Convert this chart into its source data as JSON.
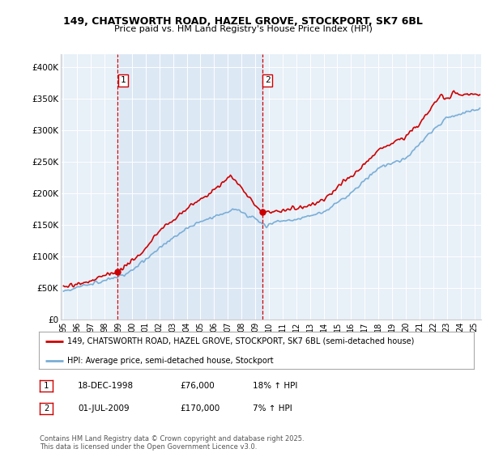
{
  "title_line1": "149, CHATSWORTH ROAD, HAZEL GROVE, STOCKPORT, SK7 6BL",
  "title_line2": "Price paid vs. HM Land Registry's House Price Index (HPI)",
  "ylim": [
    0,
    420000
  ],
  "yticks": [
    0,
    50000,
    100000,
    150000,
    200000,
    250000,
    300000,
    350000,
    400000
  ],
  "ytick_labels": [
    "£0",
    "£50K",
    "£100K",
    "£150K",
    "£200K",
    "£250K",
    "£300K",
    "£350K",
    "£400K"
  ],
  "sale1_date_num": 1998.96,
  "sale1_price": 76000,
  "sale1_label": "1",
  "sale1_date_str": "18-DEC-1998",
  "sale1_pct": "18% ↑ HPI",
  "sale2_date_num": 2009.5,
  "sale2_price": 170000,
  "sale2_label": "2",
  "sale2_date_str": "01-JUL-2009",
  "sale2_pct": "7% ↑ HPI",
  "line1_label": "149, CHATSWORTH ROAD, HAZEL GROVE, STOCKPORT, SK7 6BL (semi-detached house)",
  "line2_label": "HPI: Average price, semi-detached house, Stockport",
  "line1_color": "#cc0000",
  "line2_color": "#7aaed6",
  "vline_color": "#cc0000",
  "shade_color": "#dde8f5",
  "plot_bg": "#e8f0f8",
  "footer": "Contains HM Land Registry data © Crown copyright and database right 2025.\nThis data is licensed under the Open Government Licence v3.0.",
  "xlim_start": 1994.8,
  "xlim_end": 2025.5,
  "xticks": [
    1995,
    1996,
    1997,
    1998,
    1999,
    2000,
    2001,
    2002,
    2003,
    2004,
    2005,
    2006,
    2007,
    2008,
    2009,
    2010,
    2011,
    2012,
    2013,
    2014,
    2015,
    2016,
    2017,
    2018,
    2019,
    2020,
    2021,
    2022,
    2023,
    2024,
    2025
  ]
}
